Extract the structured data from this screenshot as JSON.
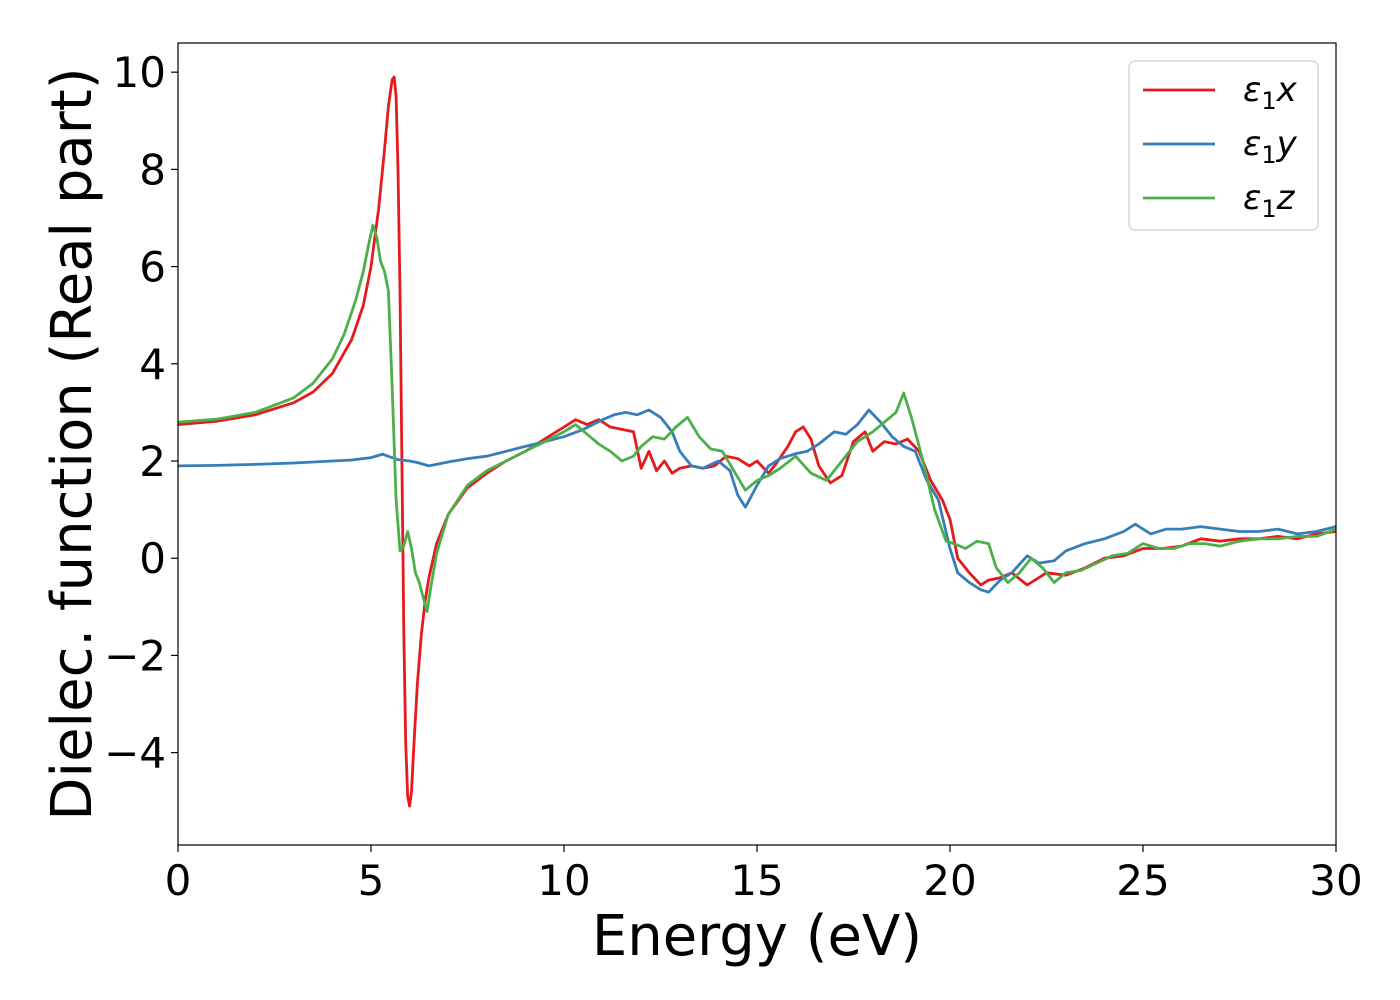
{
  "chart_data": {
    "type": "line",
    "xlabel": "Energy (eV)",
    "ylabel": "Dielec. function (Real part)",
    "xlim": [
      0,
      30
    ],
    "ylim": [
      -5.9,
      10.6
    ],
    "xticks": [
      0,
      5,
      10,
      15,
      20,
      25,
      30
    ],
    "yticks": [
      -4,
      -2,
      0,
      2,
      4,
      6,
      8,
      10
    ],
    "xtick_labels": [
      "0",
      "5",
      "10",
      "15",
      "20",
      "25",
      "30"
    ],
    "ytick_labels": [
      "−4",
      "−2",
      "0",
      "2",
      "4",
      "6",
      "8",
      "10"
    ],
    "grid": false,
    "legend_position": "top-right",
    "series": [
      {
        "name": "ε₁x",
        "legend_base": "ε",
        "legend_sub": "1",
        "legend_var": "x",
        "color": "#e41a1c",
        "x": [
          0,
          1,
          2,
          3,
          3.5,
          4,
          4.5,
          4.8,
          5.0,
          5.2,
          5.35,
          5.45,
          5.55,
          5.6,
          5.65,
          5.7,
          5.75,
          5.8,
          5.85,
          5.9,
          5.95,
          6.0,
          6.05,
          6.1,
          6.2,
          6.3,
          6.4,
          6.5,
          6.7,
          7.0,
          7.5,
          8.0,
          8.5,
          9.0,
          9.5,
          10.0,
          10.3,
          10.6,
          10.9,
          11.2,
          11.5,
          11.8,
          12.0,
          12.2,
          12.4,
          12.6,
          12.8,
          13.0,
          13.3,
          13.6,
          13.9,
          14.2,
          14.5,
          14.8,
          15.0,
          15.3,
          15.5,
          15.8,
          16.0,
          16.2,
          16.4,
          16.6,
          16.9,
          17.2,
          17.5,
          17.8,
          18.0,
          18.3,
          18.6,
          18.9,
          19.2,
          19.5,
          19.8,
          20.0,
          20.2,
          20.5,
          20.8,
          21.0,
          21.3,
          21.6,
          22.0,
          22.5,
          23.0,
          23.5,
          24.0,
          24.5,
          25.0,
          25.5,
          26.0,
          26.5,
          27.0,
          27.5,
          28.0,
          28.5,
          29.0,
          29.5,
          30.0
        ],
        "y": [
          2.75,
          2.82,
          2.95,
          3.2,
          3.42,
          3.8,
          4.5,
          5.2,
          6.0,
          7.2,
          8.4,
          9.3,
          9.85,
          9.9,
          9.5,
          8.0,
          5.5,
          2.0,
          -1.5,
          -3.8,
          -4.9,
          -5.1,
          -4.8,
          -4.0,
          -2.6,
          -1.6,
          -0.9,
          -0.4,
          0.3,
          0.9,
          1.45,
          1.75,
          2.0,
          2.2,
          2.45,
          2.7,
          2.85,
          2.75,
          2.85,
          2.7,
          2.65,
          2.6,
          1.85,
          2.2,
          1.8,
          2.0,
          1.75,
          1.85,
          1.9,
          1.85,
          1.9,
          2.1,
          2.05,
          1.9,
          2.0,
          1.75,
          1.95,
          2.3,
          2.6,
          2.7,
          2.45,
          1.9,
          1.55,
          1.7,
          2.4,
          2.6,
          2.2,
          2.4,
          2.35,
          2.45,
          2.2,
          1.6,
          1.2,
          0.8,
          0.0,
          -0.3,
          -0.55,
          -0.45,
          -0.4,
          -0.3,
          -0.55,
          -0.3,
          -0.35,
          -0.2,
          0.0,
          0.05,
          0.2,
          0.2,
          0.25,
          0.4,
          0.35,
          0.4,
          0.4,
          0.45,
          0.4,
          0.5,
          0.55
        ]
      },
      {
        "name": "ε₁y",
        "legend_base": "ε",
        "legend_sub": "1",
        "legend_var": "y",
        "color": "#377eb8",
        "x": [
          0,
          1,
          2,
          3,
          4,
          4.5,
          5.0,
          5.3,
          5.5,
          5.7,
          6.0,
          6.2,
          6.5,
          7.0,
          7.5,
          8.0,
          8.5,
          9.0,
          9.5,
          10.0,
          10.5,
          11.0,
          11.3,
          11.6,
          11.9,
          12.2,
          12.5,
          12.8,
          13.0,
          13.3,
          13.6,
          14.0,
          14.3,
          14.5,
          14.7,
          15.0,
          15.3,
          15.6,
          16.0,
          16.3,
          16.6,
          17.0,
          17.3,
          17.6,
          17.9,
          18.2,
          18.5,
          18.8,
          19.1,
          19.4,
          19.7,
          20.0,
          20.2,
          20.5,
          20.8,
          21.0,
          21.3,
          21.6,
          22.0,
          22.3,
          22.7,
          23.0,
          23.5,
          24.0,
          24.5,
          24.8,
          25.2,
          25.6,
          26.0,
          26.5,
          27.0,
          27.5,
          28.0,
          28.5,
          29.0,
          29.5,
          30.0
        ],
        "y": [
          1.9,
          1.91,
          1.93,
          1.96,
          2.0,
          2.02,
          2.07,
          2.14,
          2.08,
          2.03,
          2.0,
          1.97,
          1.9,
          1.98,
          2.05,
          2.1,
          2.2,
          2.3,
          2.4,
          2.5,
          2.65,
          2.85,
          2.95,
          3.0,
          2.95,
          3.05,
          2.9,
          2.6,
          2.2,
          1.9,
          1.85,
          2.0,
          1.8,
          1.3,
          1.05,
          1.5,
          1.9,
          2.05,
          2.15,
          2.2,
          2.35,
          2.6,
          2.55,
          2.75,
          3.05,
          2.8,
          2.5,
          2.3,
          2.2,
          1.6,
          1.2,
          0.2,
          -0.3,
          -0.5,
          -0.65,
          -0.7,
          -0.45,
          -0.3,
          0.05,
          -0.1,
          -0.05,
          0.15,
          0.3,
          0.4,
          0.55,
          0.7,
          0.5,
          0.6,
          0.6,
          0.65,
          0.6,
          0.55,
          0.55,
          0.6,
          0.5,
          0.55,
          0.65
        ]
      },
      {
        "name": "ε₁z",
        "legend_base": "ε",
        "legend_sub": "1",
        "legend_var": "z",
        "color": "#4daf4a",
        "x": [
          0,
          1,
          2,
          3,
          3.5,
          4,
          4.3,
          4.6,
          4.8,
          4.95,
          5.05,
          5.15,
          5.25,
          5.35,
          5.45,
          5.55,
          5.65,
          5.75,
          5.85,
          5.95,
          6.05,
          6.15,
          6.25,
          6.35,
          6.45,
          6.55,
          6.7,
          7.0,
          7.5,
          8.0,
          8.5,
          9.0,
          9.5,
          10.0,
          10.3,
          10.6,
          10.9,
          11.2,
          11.5,
          11.8,
          12.0,
          12.3,
          12.6,
          12.9,
          13.2,
          13.5,
          13.8,
          14.1,
          14.4,
          14.7,
          15.0,
          15.3,
          15.6,
          16.0,
          16.4,
          16.8,
          17.2,
          17.6,
          18.0,
          18.3,
          18.6,
          18.8,
          19.0,
          19.3,
          19.6,
          19.9,
          20.1,
          20.4,
          20.7,
          21.0,
          21.2,
          21.5,
          21.8,
          22.1,
          22.4,
          22.7,
          23.0,
          23.4,
          23.8,
          24.2,
          24.6,
          25.0,
          25.4,
          25.8,
          26.2,
          26.6,
          27.0,
          27.5,
          28.0,
          28.5,
          29.0,
          29.5,
          30.0
        ],
        "y": [
          2.8,
          2.86,
          3.0,
          3.3,
          3.6,
          4.1,
          4.6,
          5.3,
          5.9,
          6.5,
          6.85,
          6.6,
          6.1,
          5.9,
          5.5,
          3.5,
          1.2,
          0.15,
          0.25,
          0.55,
          0.2,
          -0.3,
          -0.5,
          -0.8,
          -1.1,
          -0.6,
          0.1,
          0.9,
          1.5,
          1.8,
          2.0,
          2.2,
          2.4,
          2.6,
          2.75,
          2.55,
          2.35,
          2.2,
          2.0,
          2.1,
          2.3,
          2.5,
          2.45,
          2.7,
          2.9,
          2.5,
          2.25,
          2.2,
          1.8,
          1.4,
          1.6,
          1.7,
          1.85,
          2.1,
          1.75,
          1.6,
          2.0,
          2.4,
          2.6,
          2.8,
          3.0,
          3.4,
          2.9,
          2.0,
          1.0,
          0.35,
          0.3,
          0.2,
          0.35,
          0.3,
          -0.2,
          -0.5,
          -0.3,
          0.0,
          -0.2,
          -0.5,
          -0.3,
          -0.25,
          -0.1,
          0.05,
          0.1,
          0.3,
          0.2,
          0.2,
          0.3,
          0.3,
          0.25,
          0.35,
          0.4,
          0.4,
          0.45,
          0.45,
          0.6
        ]
      }
    ]
  }
}
